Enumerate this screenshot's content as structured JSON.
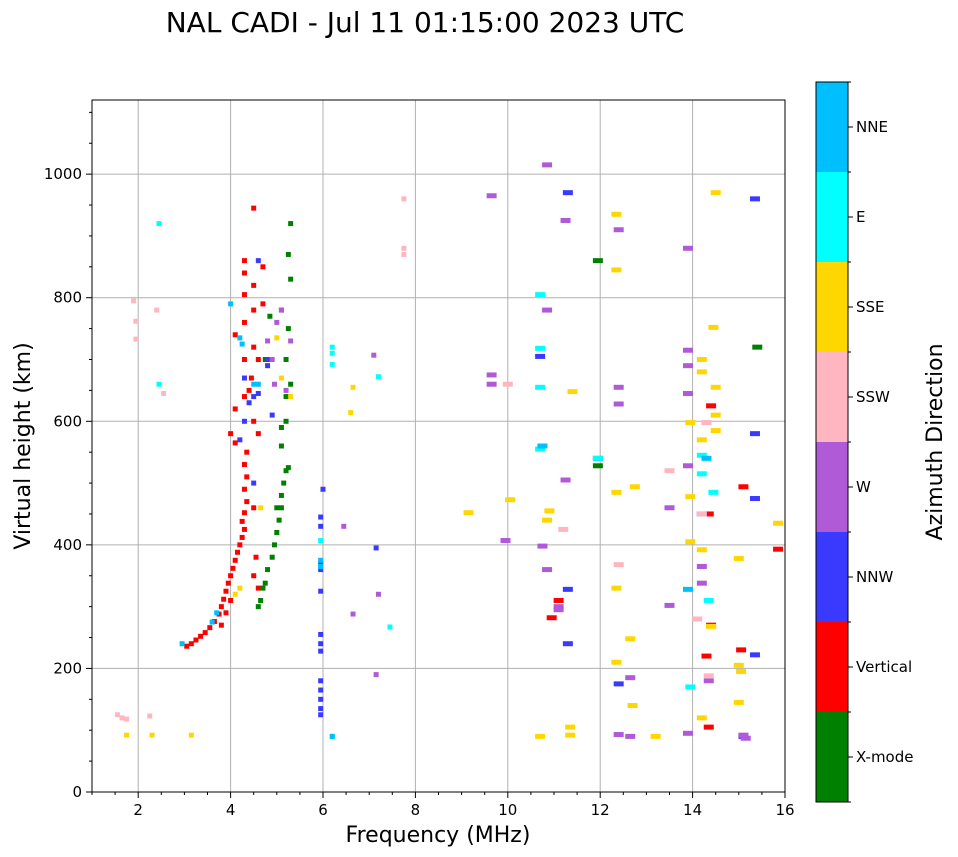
{
  "chart_data": {
    "type": "scatter",
    "title": "NAL CADI - Jul 11 01:15:00 2023 UTC",
    "xlabel": "Frequency (MHz)",
    "ylabel": "Virtual height (km)",
    "xlim": [
      1,
      16
    ],
    "ylim": [
      0,
      1120
    ],
    "xticks": [
      2,
      4,
      6,
      8,
      10,
      12,
      14,
      16
    ],
    "yticks": [
      0,
      200,
      400,
      600,
      800,
      1000
    ],
    "grid": true,
    "colorbar": {
      "title": "Azimuth Direction",
      "categories": [
        {
          "name": "X-mode",
          "color": "#008000"
        },
        {
          "name": "Vertical",
          "color": "#ff0000"
        },
        {
          "name": "NNW",
          "color": "#3a3aff"
        },
        {
          "name": "W",
          "color": "#b05ad8"
        },
        {
          "name": "SSW",
          "color": "#ffb6c1"
        },
        {
          "name": "SSE",
          "color": "#ffd700"
        },
        {
          "name": "E",
          "color": "#00ffff"
        },
        {
          "name": "NNE",
          "color": "#00bfff"
        }
      ]
    },
    "series": [
      {
        "name": "Vertical",
        "points": [
          [
            3.05,
            236
          ],
          [
            3.15,
            240
          ],
          [
            3.25,
            246
          ],
          [
            3.35,
            252
          ],
          [
            3.45,
            258
          ],
          [
            3.55,
            266
          ],
          [
            3.65,
            276
          ],
          [
            3.75,
            288
          ],
          [
            3.8,
            300
          ],
          [
            3.85,
            312
          ],
          [
            3.9,
            325
          ],
          [
            3.95,
            338
          ],
          [
            4.0,
            350
          ],
          [
            4.05,
            362
          ],
          [
            4.1,
            375
          ],
          [
            4.15,
            388
          ],
          [
            4.2,
            400
          ],
          [
            4.25,
            412
          ],
          [
            4.3,
            425
          ],
          [
            4.25,
            438
          ],
          [
            4.3,
            452
          ],
          [
            4.35,
            470
          ],
          [
            4.3,
            490
          ],
          [
            4.35,
            510
          ],
          [
            4.3,
            530
          ],
          [
            4.35,
            550
          ],
          [
            4.1,
            565
          ],
          [
            4.0,
            580
          ],
          [
            4.1,
            620
          ],
          [
            4.3,
            640
          ],
          [
            4.5,
            600
          ],
          [
            4.6,
            580
          ],
          [
            4.4,
            650
          ],
          [
            4.45,
            670
          ],
          [
            4.3,
            700
          ],
          [
            4.5,
            720
          ],
          [
            4.1,
            740
          ],
          [
            4.3,
            760
          ],
          [
            4.5,
            780
          ],
          [
            4.7,
            790
          ],
          [
            4.3,
            805
          ],
          [
            4.5,
            820
          ],
          [
            4.3,
            840
          ],
          [
            4.7,
            850
          ],
          [
            4.3,
            860
          ],
          [
            4.5,
            945
          ],
          [
            4.55,
            380
          ],
          [
            4.5,
            350
          ],
          [
            4.6,
            330
          ],
          [
            4.5,
            460
          ],
          [
            4.6,
            700
          ],
          [
            3.8,
            270
          ],
          [
            3.9,
            290
          ],
          [
            4.0,
            310
          ],
          [
            14.3,
            220
          ],
          [
            14.4,
            270
          ],
          [
            14.35,
            105
          ],
          [
            14.4,
            625
          ],
          [
            14.35,
            450
          ],
          [
            15.05,
            230
          ],
          [
            15.1,
            494
          ],
          [
            15.85,
            393
          ],
          [
            10.95,
            282
          ],
          [
            11.1,
            310
          ]
        ]
      },
      {
        "name": "X-mode",
        "points": [
          [
            4.6,
            300
          ],
          [
            4.65,
            310
          ],
          [
            4.7,
            330
          ],
          [
            4.75,
            338
          ],
          [
            4.8,
            360
          ],
          [
            4.9,
            380
          ],
          [
            4.95,
            400
          ],
          [
            5.0,
            420
          ],
          [
            5.05,
            440
          ],
          [
            5.1,
            460
          ],
          [
            5.1,
            480
          ],
          [
            5.15,
            500
          ],
          [
            5.2,
            520
          ],
          [
            5.25,
            525
          ],
          [
            5.1,
            560
          ],
          [
            5.1,
            590
          ],
          [
            5.2,
            600
          ],
          [
            5.2,
            640
          ],
          [
            5.3,
            660
          ],
          [
            5.2,
            700
          ],
          [
            5.25,
            750
          ],
          [
            5.1,
            780
          ],
          [
            5.3,
            830
          ],
          [
            5.25,
            870
          ],
          [
            5.3,
            920
          ],
          [
            4.75,
            700
          ],
          [
            4.85,
            770
          ],
          [
            5.0,
            460
          ],
          [
            11.95,
            860
          ],
          [
            11.95,
            540
          ],
          [
            11.95,
            528
          ],
          [
            15.4,
            720
          ]
        ]
      },
      {
        "name": "NNW",
        "points": [
          [
            4.4,
            630
          ],
          [
            4.5,
            640
          ],
          [
            4.6,
            645
          ],
          [
            4.3,
            670
          ],
          [
            4.8,
            700
          ],
          [
            4.5,
            500
          ],
          [
            4.3,
            600
          ],
          [
            4.2,
            570
          ],
          [
            4.9,
            610
          ],
          [
            4.8,
            690
          ],
          [
            4.6,
            860
          ],
          [
            5.95,
            445
          ],
          [
            5.95,
            430
          ],
          [
            5.95,
            370
          ],
          [
            5.95,
            360
          ],
          [
            5.95,
            325
          ],
          [
            5.95,
            255
          ],
          [
            5.95,
            240
          ],
          [
            5.95,
            228
          ],
          [
            5.95,
            180
          ],
          [
            5.95,
            165
          ],
          [
            5.95,
            150
          ],
          [
            5.95,
            135
          ],
          [
            5.95,
            125
          ],
          [
            11.3,
            970
          ],
          [
            11.3,
            328
          ],
          [
            11.3,
            240
          ],
          [
            15.35,
            960
          ],
          [
            15.35,
            580
          ],
          [
            15.35,
            475
          ],
          [
            15.35,
            222
          ],
          [
            15.1,
            90
          ],
          [
            10.7,
            705
          ],
          [
            7.15,
            395
          ],
          [
            6.0,
            490
          ],
          [
            14.2,
            450
          ],
          [
            12.4,
            175
          ]
        ]
      },
      {
        "name": "W",
        "points": [
          [
            4.9,
            700
          ],
          [
            5.0,
            760
          ],
          [
            4.8,
            730
          ],
          [
            4.95,
            660
          ],
          [
            5.2,
            650
          ],
          [
            5.3,
            730
          ],
          [
            5.1,
            780
          ],
          [
            6.45,
            430
          ],
          [
            6.65,
            288
          ],
          [
            7.2,
            320
          ],
          [
            7.15,
            190
          ],
          [
            7.1,
            707
          ],
          [
            9.65,
            965
          ],
          [
            9.65,
            675
          ],
          [
            9.65,
            660
          ],
          [
            9.95,
            407
          ],
          [
            10.85,
            1015
          ],
          [
            10.85,
            780
          ],
          [
            10.85,
            360
          ],
          [
            10.75,
            398
          ],
          [
            11.1,
            300
          ],
          [
            11.1,
            295
          ],
          [
            11.25,
            505
          ],
          [
            11.25,
            925
          ],
          [
            12.4,
            910
          ],
          [
            12.4,
            655
          ],
          [
            12.4,
            628
          ],
          [
            12.65,
            185
          ],
          [
            12.65,
            90
          ],
          [
            12.4,
            93
          ],
          [
            13.5,
            460
          ],
          [
            13.5,
            302
          ],
          [
            13.9,
            880
          ],
          [
            13.9,
            715
          ],
          [
            13.9,
            690
          ],
          [
            13.9,
            645
          ],
          [
            13.9,
            528
          ],
          [
            13.9,
            95
          ],
          [
            14.2,
            338
          ],
          [
            14.2,
            365
          ],
          [
            14.35,
            180
          ],
          [
            15.1,
            92
          ],
          [
            15.15,
            87
          ]
        ]
      },
      {
        "name": "SSW",
        "points": [
          [
            1.9,
            795
          ],
          [
            1.95,
            762
          ],
          [
            1.95,
            733
          ],
          [
            2.4,
            780
          ],
          [
            2.55,
            645
          ],
          [
            1.55,
            125
          ],
          [
            1.65,
            120
          ],
          [
            1.75,
            118
          ],
          [
            2.25,
            123
          ],
          [
            7.75,
            960
          ],
          [
            7.75,
            880
          ],
          [
            7.75,
            870
          ],
          [
            10.0,
            660
          ],
          [
            11.2,
            425
          ],
          [
            12.4,
            368
          ],
          [
            13.5,
            520
          ],
          [
            14.1,
            280
          ],
          [
            14.35,
            188
          ],
          [
            14.3,
            598
          ],
          [
            14.2,
            450
          ]
        ]
      },
      {
        "name": "SSE",
        "points": [
          [
            4.1,
            320
          ],
          [
            4.2,
            330
          ],
          [
            4.65,
            460
          ],
          [
            5.0,
            735
          ],
          [
            5.1,
            670
          ],
          [
            5.3,
            640
          ],
          [
            6.65,
            655
          ],
          [
            6.6,
            614
          ],
          [
            9.15,
            452
          ],
          [
            10.7,
            90
          ],
          [
            10.9,
            455
          ],
          [
            10.85,
            440
          ],
          [
            11.35,
            105
          ],
          [
            11.35,
            92
          ],
          [
            11.4,
            648
          ],
          [
            12.35,
            935
          ],
          [
            12.35,
            845
          ],
          [
            12.35,
            485
          ],
          [
            12.35,
            330
          ],
          [
            12.35,
            210
          ],
          [
            12.65,
            248
          ],
          [
            12.7,
            140
          ],
          [
            13.2,
            90
          ],
          [
            13.95,
            598
          ],
          [
            13.95,
            478
          ],
          [
            13.95,
            405
          ],
          [
            14.2,
            700
          ],
          [
            14.2,
            680
          ],
          [
            14.2,
            570
          ],
          [
            14.2,
            392
          ],
          [
            14.2,
            120
          ],
          [
            14.5,
            970
          ],
          [
            14.45,
            752
          ],
          [
            14.5,
            655
          ],
          [
            14.5,
            610
          ],
          [
            14.5,
            585
          ],
          [
            14.4,
            268
          ],
          [
            15.0,
            205
          ],
          [
            15.05,
            195
          ],
          [
            15.0,
            378
          ],
          [
            15.0,
            145
          ],
          [
            15.85,
            435
          ],
          [
            12.75,
            494
          ],
          [
            10.05,
            473
          ],
          [
            1.75,
            92
          ],
          [
            2.3,
            92
          ],
          [
            3.15,
            92
          ]
        ]
      },
      {
        "name": "E",
        "points": [
          [
            2.45,
            920
          ],
          [
            2.45,
            660
          ],
          [
            6.2,
            720
          ],
          [
            6.2,
            710
          ],
          [
            6.2,
            692
          ],
          [
            7.2,
            672
          ],
          [
            7.45,
            267
          ],
          [
            10.7,
            805
          ],
          [
            10.7,
            718
          ],
          [
            10.7,
            655
          ],
          [
            10.7,
            555
          ],
          [
            11.95,
            540
          ],
          [
            13.95,
            170
          ],
          [
            14.2,
            515
          ],
          [
            14.2,
            545
          ],
          [
            14.35,
            310
          ],
          [
            14.45,
            485
          ],
          [
            6.2,
            90
          ],
          [
            5.95,
            407
          ]
        ]
      },
      {
        "name": "NNE",
        "points": [
          [
            4.2,
            735
          ],
          [
            4.25,
            725
          ],
          [
            4.5,
            660
          ],
          [
            4.6,
            660
          ],
          [
            4.0,
            790
          ],
          [
            3.7,
            290
          ],
          [
            3.6,
            275
          ],
          [
            2.95,
            240
          ],
          [
            5.95,
            375
          ],
          [
            5.95,
            365
          ],
          [
            6.2,
            90
          ],
          [
            14.3,
            540
          ],
          [
            13.9,
            328
          ],
          [
            10.75,
            560
          ]
        ]
      }
    ]
  }
}
